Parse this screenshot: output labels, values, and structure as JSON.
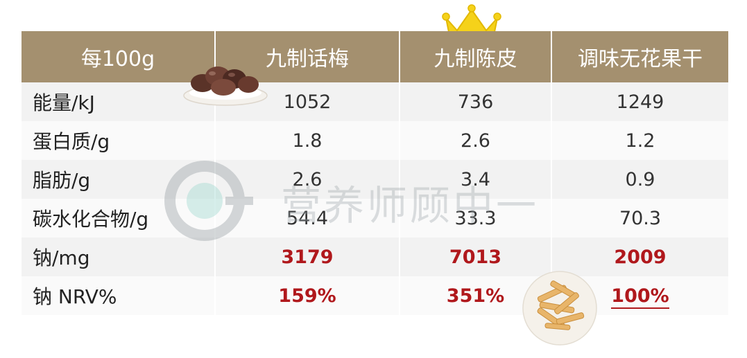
{
  "table": {
    "headers": [
      "每100g",
      "九制话梅",
      "九制陈皮",
      "调味无花果干"
    ],
    "rows": [
      {
        "label": "能量/kJ",
        "values": [
          "1052",
          "736",
          "1249"
        ],
        "highlight": false
      },
      {
        "label": "蛋白质/g",
        "values": [
          "1.8",
          "2.6",
          "1.2"
        ],
        "highlight": false
      },
      {
        "label": "脂肪/g",
        "values": [
          "2.6",
          "3.4",
          "0.9"
        ],
        "highlight": false
      },
      {
        "label": "碳水化合物/g",
        "values": [
          "54.4",
          "33.3",
          "70.3"
        ],
        "highlight": false
      },
      {
        "label": "钠/mg",
        "values": [
          "3179",
          "7013",
          "2009"
        ],
        "highlight": true
      },
      {
        "label": "钠 NRV%",
        "values": [
          "159%",
          "351%",
          "100%"
        ],
        "highlight": true
      }
    ]
  },
  "watermark": {
    "text": "营养师顾中一"
  },
  "colors": {
    "header_bg": "#a4906f",
    "highlight_text": "#b0181c",
    "crown": "#f5d21a"
  },
  "icons": [
    "crown-icon",
    "dried-plum-dish-image",
    "dried-peel-dish-image",
    "watermark-logo-icon"
  ]
}
